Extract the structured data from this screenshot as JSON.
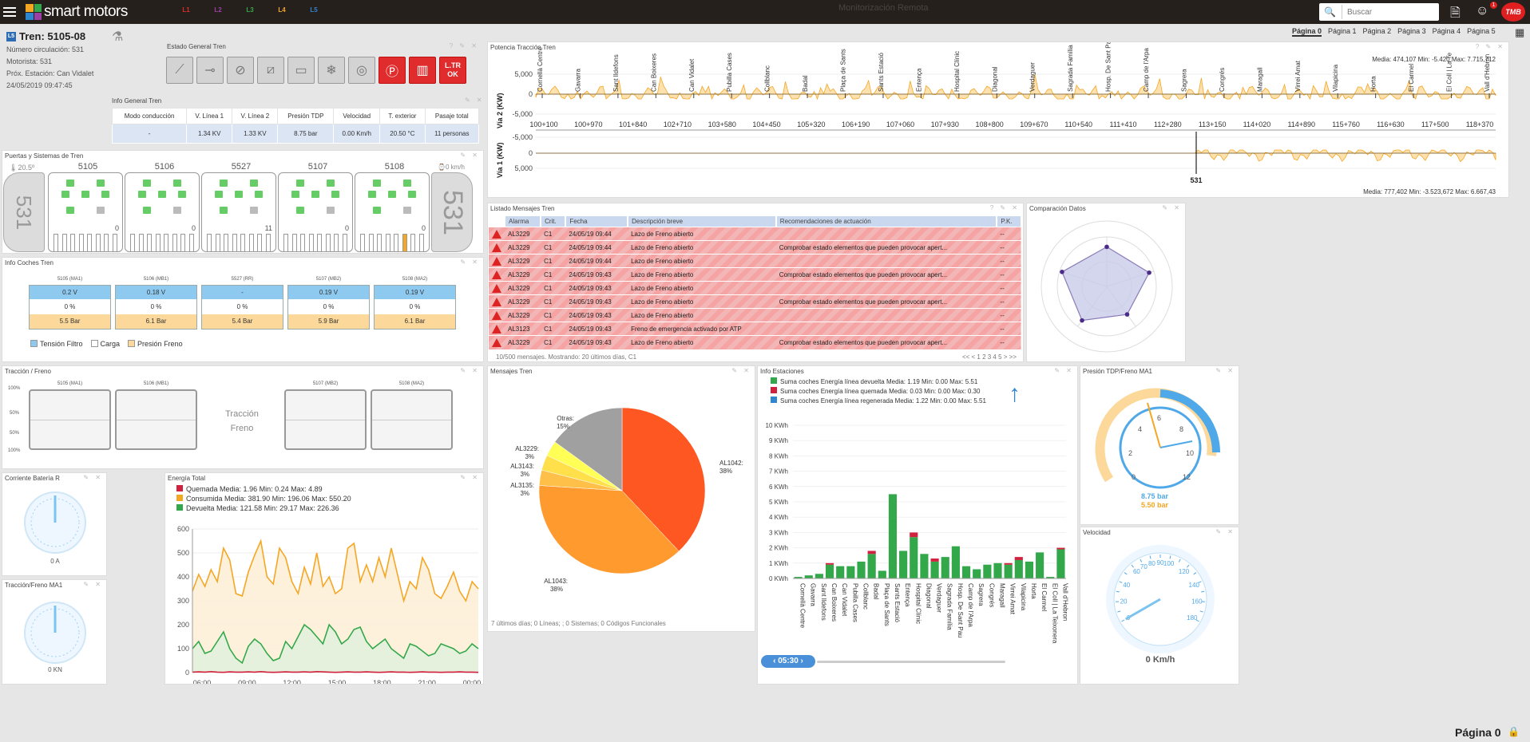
{
  "app": {
    "brand": "smart motors",
    "search_placeholder": "Buscar",
    "notifications": "1",
    "tmb": "TMB",
    "ghost_text": "Monitorización Remota"
  },
  "lines": [
    {
      "label": "L1",
      "color": "#e02c2c"
    },
    {
      "label": "L2",
      "color": "#9b3fa6"
    },
    {
      "label": "L3",
      "color": "#33a84a"
    },
    {
      "label": "L4",
      "color": "#f5a623"
    },
    {
      "label": "L5",
      "color": "#2e86d1"
    }
  ],
  "pages": [
    "Página 0",
    "Página 1",
    "Página 2",
    "Página 3",
    "Página 4",
    "Página 5"
  ],
  "footer_page": "Página 0",
  "train": {
    "line": "L5",
    "title": "Tren: 5105-08",
    "numero": "Número circulación: 531",
    "motorista": "Motorista: 531",
    "estacion": "Próx. Estación: Can Vidalet",
    "fecha": "24/05/2019 09:47:45"
  },
  "estado_general": {
    "title": "Estado General Tren",
    "red_label": "L.TR\nOK",
    "icons": [
      "pantograph-icon",
      "switch-icon",
      "brake-disc-icon",
      "converter-icon",
      "battery-icon",
      "snowflake-icon",
      "parking-brake-icon",
      "parking-icon",
      "doors-icon"
    ]
  },
  "info_general": {
    "title": "Info General Tren",
    "headers": [
      "Modo conducción",
      "V. Línea 1",
      "V. Línea 2",
      "Presión TDP",
      "Velocidad",
      "T. exterior",
      "Pasaje total"
    ],
    "values": [
      "-",
      "1.34 KV",
      "1.33 KV",
      "8.75 bar",
      "0.00 Km/h",
      "20.50 °C",
      "11 personas"
    ]
  },
  "puertas": {
    "title": "Puertas y Sistemas de Tren",
    "temp": "20.5º",
    "speed": "0 km/h",
    "train_number": "531",
    "cars": [
      "5105",
      "5106",
      "5527",
      "5107",
      "5108"
    ],
    "counts": [
      "0",
      "0",
      "11",
      "0",
      "0"
    ]
  },
  "info_coches": {
    "title": "Info Coches Tren",
    "cars": [
      {
        "name": "5105 (MA1)",
        "v": "0.2 V",
        "c": "0 %",
        "p": "5.5 Bar"
      },
      {
        "name": "5106 (MB1)",
        "v": "0.18 V",
        "c": "0 %",
        "p": "6.1 Bar"
      },
      {
        "name": "5527 (RR)",
        "v": "-",
        "c": "0 %",
        "p": "5.4 Bar"
      },
      {
        "name": "5107 (MB2)",
        "v": "0.19 V",
        "c": "0 %",
        "p": "5.9 Bar"
      },
      {
        "name": "5108 (MA2)",
        "v": "0.19 V",
        "c": "0 %",
        "p": "6.1 Bar"
      }
    ],
    "legend": [
      "Tensión Filtro",
      "Carga",
      "Presión Freno"
    ]
  },
  "traccion": {
    "title": "Tracción / Freno",
    "cars": [
      "5105 (MA1)",
      "5106 (MB1)",
      "5107 (MB2)",
      "5108 (MA2)"
    ],
    "label_t": "Tracción",
    "label_f": "Freno",
    "scale": [
      "100%",
      "50%",
      "50%",
      "100%"
    ]
  },
  "bateria": {
    "title": "Corriente Batería R",
    "value": "0 A"
  },
  "traccion_ma1": {
    "title": "Tracción/Freno MA1",
    "value": "0 KN"
  },
  "energia": {
    "title": "Energía Total",
    "legend": [
      {
        "label": "Quemada",
        "stats": "Media: 1.96 Min: 0.24 Max: 4.89",
        "color": "#d2213f"
      },
      {
        "label": "Consumida",
        "stats": "Media: 381.90 Min: 196.06 Max: 550.20",
        "color": "#f5a623"
      },
      {
        "label": "Devuelta",
        "stats": "Media: 121.58 Min: 29.17 Max: 226.36",
        "color": "#33a84a"
      }
    ]
  },
  "potencia": {
    "title": "Potencia Tracción Tren",
    "stats_top": "Media: 474,107 Min: -5.420 Max: 7.715,712",
    "stats_bottom": "Media: 777,402 Min: -3.523,672 Max: 6.667,43",
    "ylabel1": "Vía 2 (KW)",
    "ylabel2": "Vía 1 (KW)",
    "yticks_top": [
      "5,000",
      "0",
      "-5,000"
    ],
    "yticks_bottom": [
      "-5,000",
      "0",
      "5,000"
    ],
    "marker": "531",
    "stations": [
      "Cornellà Centre",
      "Gavarra",
      "Sant Ildefons",
      "Can Boixeres",
      "Can Vidalet",
      "Pubilla Cases",
      "Collblanc",
      "Badal",
      "Plaça de Sants",
      "Sants Estació",
      "Entença",
      "Hospital Clínic",
      "Diagonal",
      "Verdaguer",
      "Sagrada Família",
      "Hosp. De Sant Pau",
      "Camp de l'Arpa",
      "Sagrera",
      "Congrés",
      "Maragall",
      "Virrei Amat",
      "Vilapicina",
      "Horta",
      "El Carmel",
      "El Coll | La Te",
      "Vall d'Hebron"
    ],
    "pk": [
      "100+100",
      "100+970",
      "101+840",
      "102+710",
      "103+580",
      "104+450",
      "105+320",
      "106+190",
      "107+060",
      "107+930",
      "108+800",
      "109+670",
      "110+540",
      "111+410",
      "112+280",
      "113+150",
      "114+020",
      "114+890",
      "115+760",
      "116+630",
      "117+500",
      "118+370"
    ]
  },
  "mensajes": {
    "title": "Listado Mensajes Tren",
    "headers": [
      "Alarma",
      "Crit.",
      "Fecha",
      "Descripción breve",
      "Recomendaciones de actuación",
      "P.K."
    ],
    "rows": [
      [
        "AL3229",
        "C1",
        "24/05/19 09:44",
        "Lazo de Freno abierto",
        "",
        "--"
      ],
      [
        "AL3229",
        "C1",
        "24/05/19 09:44",
        "Lazo de Freno abierto",
        "Comprobar estado elementos que pueden provocar apert...",
        "--"
      ],
      [
        "AL3229",
        "C1",
        "24/05/19 09:44",
        "Lazo de Freno abierto",
        "",
        "--"
      ],
      [
        "AL3229",
        "C1",
        "24/05/19 09:43",
        "Lazo de Freno abierto",
        "Comprobar estado elementos que pueden provocar apert...",
        "--"
      ],
      [
        "AL3229",
        "C1",
        "24/05/19 09:43",
        "Lazo de Freno abierto",
        "",
        "--"
      ],
      [
        "AL3229",
        "C1",
        "24/05/19 09:43",
        "Lazo de Freno abierto",
        "Comprobar estado elementos que pueden provocar apert...",
        "--"
      ],
      [
        "AL3229",
        "C1",
        "24/05/19 09:43",
        "Lazo de Freno abierto",
        "",
        "--"
      ],
      [
        "AL3123",
        "C1",
        "24/05/19 09:43",
        "Freno de emergencia activado por ATP",
        "",
        "--"
      ],
      [
        "AL3229",
        "C1",
        "24/05/19 09:43",
        "Lazo de Freno abierto",
        "Comprobar estado elementos que pueden provocar apert...",
        "--"
      ]
    ],
    "footer": "10/500 mensajes. Mostrando: 20 últimos días, C1",
    "pager": "<< < 1 2 3 4 5 > >>"
  },
  "comparacion": {
    "title": "Comparación Datos"
  },
  "mensajes_tren": {
    "title": "Mensajes Tren",
    "footer": "7 últimos días; 0 Líneas; ; 0 Sistemas; 0 Códigos Funcionales"
  },
  "estaciones": {
    "title": "Info Estaciones",
    "time": "05:30",
    "legend": [
      {
        "label": "Suma coches Energía línea devuelta",
        "stats": "Media: 1.19 Min: 0.00 Max: 5.51",
        "color": "#33a84a"
      },
      {
        "label": "Suma coches Energía línea quemada",
        "stats": "Media: 0.03 Min: 0.00 Max: 0.30",
        "color": "#d2213f"
      },
      {
        "label": "Suma coches Energía línea regenerada",
        "stats": "Media: 1.22 Min: 0.00 Max: 5.51",
        "color": "#2e86d1"
      }
    ]
  },
  "presion": {
    "title": "Presión TDP/Freno MA1",
    "v1": "8.75 bar",
    "v2": "5.50 bar"
  },
  "velocidad": {
    "title": "Velocidad",
    "value": "0 Km/h"
  },
  "chart_data": [
    {
      "type": "pie",
      "title": "Mensajes Tren",
      "slices": [
        {
          "label": "AL1042",
          "value": 38,
          "color": "#ff5722"
        },
        {
          "label": "AL1043",
          "value": 38,
          "color": "#ff9a2e"
        },
        {
          "label": "AL3135",
          "value": 3,
          "color": "#ffc04a"
        },
        {
          "label": "AL3143",
          "value": 3,
          "color": "#ffdf4a"
        },
        {
          "label": "AL3229",
          "value": 3,
          "color": "#ffff55"
        },
        {
          "label": "Otras",
          "value": 15,
          "color": "#a0a0a0"
        }
      ]
    },
    {
      "type": "bar",
      "title": "Info Estaciones",
      "ylabel": "KWh",
      "ylim": [
        0,
        10
      ],
      "yticks": [
        "0 KWh",
        "1 KWh",
        "2 KWh",
        "3 KWh",
        "4 KWh",
        "5 KWh",
        "6 KWh",
        "7 KWh",
        "8 KWh",
        "9 KWh",
        "10 KWh"
      ],
      "categories": [
        "Cornellà Centre",
        "Gavarra",
        "Sant Ildefons",
        "Can Boixeres",
        "Can Vidalet",
        "Pubilla Cases",
        "Collblanc",
        "Badal",
        "Plaça de Sants",
        "Sants Estació",
        "Entença",
        "Hospital Clínic",
        "Diagonal",
        "Verdaguer",
        "Sagrada Família",
        "Hosp. De Sant Pau",
        "Camp de l'Arpa",
        "Sagrera",
        "Congrés",
        "Maragall",
        "Virrei Amat",
        "Vilapicina",
        "Horta",
        "El Carmel",
        "El Coll | La Teixonera",
        "Vall d'Hebron"
      ],
      "series": [
        {
          "name": "Suma coches Energía línea devuelta",
          "values": [
            0.1,
            0.2,
            0.3,
            0.9,
            0.8,
            0.8,
            1.1,
            1.6,
            0.5,
            5.5,
            1.8,
            2.7,
            1.6,
            1.1,
            1.4,
            2.1,
            0.8,
            0.6,
            0.9,
            1.0,
            0.9,
            1.2,
            1.1,
            1.7,
            0.1,
            1.9
          ]
        },
        {
          "name": "Suma coches Energía línea quemada",
          "values": [
            0,
            0,
            0,
            0.1,
            0,
            0,
            0,
            0.2,
            0,
            0,
            0,
            0.3,
            0,
            0.2,
            0,
            0,
            0,
            0,
            0,
            0,
            0.1,
            0.2,
            0,
            0,
            0,
            0.1
          ]
        }
      ]
    },
    {
      "type": "line",
      "title": "Energía Total",
      "xticks": [
        "06:00",
        "09:00",
        "12:00",
        "15:00",
        "18:00",
        "21:00",
        "00:00"
      ],
      "ylim": [
        0,
        600
      ],
      "yticks": [
        "0",
        "100",
        "200",
        "300",
        "400",
        "500",
        "600"
      ],
      "series": [
        {
          "name": "Consumida",
          "values": [
            340,
            410,
            360,
            430,
            380,
            520,
            470,
            330,
            320,
            420,
            490,
            550,
            400,
            370,
            520,
            480,
            380,
            330,
            440,
            370,
            500,
            360,
            400,
            330,
            350,
            520,
            540,
            380,
            450,
            380,
            480,
            400,
            520,
            410,
            300,
            380,
            350,
            480,
            430,
            330,
            310,
            360,
            420,
            340,
            300,
            380,
            350
          ]
        },
        {
          "name": "Devuelta",
          "values": [
            100,
            130,
            80,
            90,
            130,
            170,
            100,
            60,
            40,
            110,
            140,
            120,
            80,
            50,
            60,
            130,
            100,
            150,
            200,
            180,
            150,
            120,
            200,
            170,
            120,
            140,
            180,
            190,
            130,
            100,
            120,
            140,
            100,
            80,
            60,
            120,
            110,
            90,
            70,
            80,
            120,
            110,
            100,
            80,
            90,
            120,
            100
          ]
        },
        {
          "name": "Quemada",
          "values": [
            2,
            3,
            2,
            4,
            2,
            1,
            3,
            2,
            2,
            3,
            2,
            4,
            2,
            1,
            2,
            3,
            2,
            2,
            3,
            2,
            4,
            3,
            2,
            1,
            2,
            3,
            2,
            2,
            3,
            2,
            1,
            2,
            3,
            2,
            2,
            1,
            2,
            3,
            2,
            2,
            1,
            2,
            2,
            3,
            2,
            2,
            1
          ]
        }
      ]
    },
    {
      "type": "radar",
      "title": "Comparación Datos",
      "axes": 5,
      "values": [
        0.8,
        0.9,
        0.7,
        0.85,
        0.95
      ]
    }
  ]
}
